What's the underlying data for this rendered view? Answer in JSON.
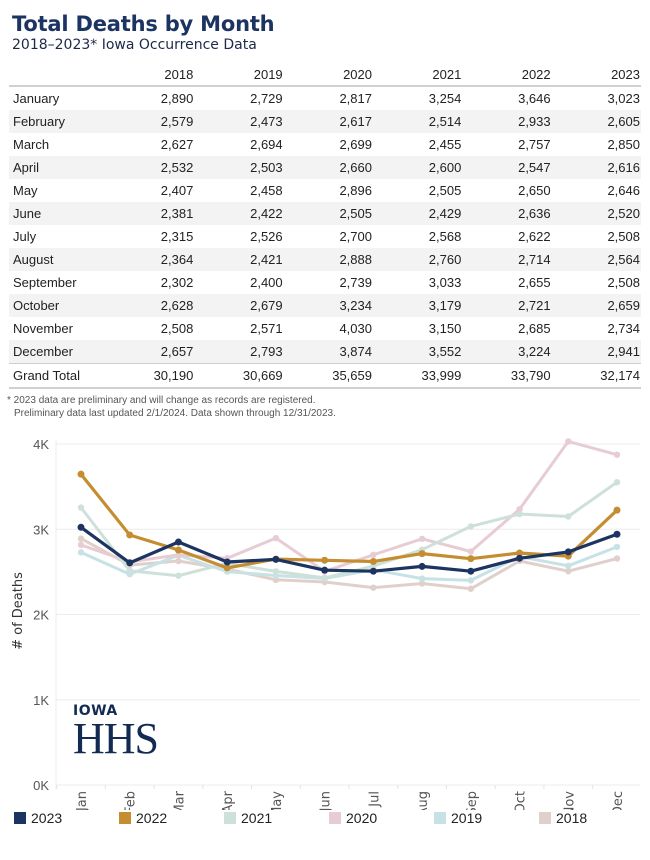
{
  "header": {
    "title": "Total Deaths by Month",
    "subtitle": "2018–2023* Iowa Occurrence Data"
  },
  "table": {
    "columns": [
      "",
      "2018",
      "2019",
      "2020",
      "2021",
      "2022",
      "2023"
    ],
    "rows": [
      {
        "month": "January",
        "values": [
          "2,890",
          "2,729",
          "2,817",
          "3,254",
          "3,646",
          "3,023"
        ]
      },
      {
        "month": "February",
        "values": [
          "2,579",
          "2,473",
          "2,617",
          "2,514",
          "2,933",
          "2,605"
        ]
      },
      {
        "month": "March",
        "values": [
          "2,627",
          "2,694",
          "2,699",
          "2,455",
          "2,757",
          "2,850"
        ]
      },
      {
        "month": "April",
        "values": [
          "2,532",
          "2,503",
          "2,660",
          "2,600",
          "2,547",
          "2,616"
        ]
      },
      {
        "month": "May",
        "values": [
          "2,407",
          "2,458",
          "2,896",
          "2,505",
          "2,650",
          "2,646"
        ]
      },
      {
        "month": "June",
        "values": [
          "2,381",
          "2,422",
          "2,505",
          "2,429",
          "2,636",
          "2,520"
        ]
      },
      {
        "month": "July",
        "values": [
          "2,315",
          "2,526",
          "2,700",
          "2,568",
          "2,622",
          "2,508"
        ]
      },
      {
        "month": "August",
        "values": [
          "2,364",
          "2,421",
          "2,888",
          "2,760",
          "2,714",
          "2,564"
        ]
      },
      {
        "month": "September",
        "values": [
          "2,302",
          "2,400",
          "2,739",
          "3,033",
          "2,655",
          "2,508"
        ]
      },
      {
        "month": "October",
        "values": [
          "2,628",
          "2,679",
          "3,234",
          "3,179",
          "2,721",
          "2,659"
        ]
      },
      {
        "month": "November",
        "values": [
          "2,508",
          "2,571",
          "4,030",
          "3,150",
          "2,685",
          "2,734"
        ]
      },
      {
        "month": "December",
        "values": [
          "2,657",
          "2,793",
          "3,874",
          "3,552",
          "3,224",
          "2,941"
        ]
      }
    ],
    "total": {
      "label": "Grand Total",
      "values": [
        "30,190",
        "30,669",
        "35,659",
        "33,999",
        "33,790",
        "32,174"
      ]
    }
  },
  "notes": [
    "* 2023 data are preliminary and will change as records are registered.",
    "Preliminary data last updated 2/1/2024. Data shown through 12/31/2023."
  ],
  "logo": {
    "line1": "IOWA",
    "line2": "HHS"
  },
  "chart_data": {
    "type": "line",
    "title": "",
    "xlabel": "",
    "ylabel": "# of Deaths",
    "categories": [
      "Jan",
      "Feb",
      "Mar",
      "Apr",
      "May",
      "Jun",
      "Jul",
      "Aug",
      "Sep",
      "Oct",
      "Nov",
      "Dec"
    ],
    "ylim": [
      0,
      4000
    ],
    "yticks": [
      0,
      1000,
      2000,
      3000,
      4000
    ],
    "ytick_labels": [
      "0K",
      "1K",
      "2K",
      "3K",
      "4K"
    ],
    "grid": true,
    "legend_position": "bottom",
    "series": [
      {
        "name": "2018",
        "color": "#e0d0cc",
        "values": [
          2890,
          2579,
          2627,
          2532,
          2407,
          2381,
          2315,
          2364,
          2302,
          2628,
          2508,
          2657
        ]
      },
      {
        "name": "2019",
        "color": "#c7e2e4",
        "values": [
          2729,
          2473,
          2694,
          2503,
          2458,
          2422,
          2526,
          2421,
          2400,
          2679,
          2571,
          2793
        ]
      },
      {
        "name": "2020",
        "color": "#e8ccd3",
        "values": [
          2817,
          2617,
          2699,
          2660,
          2896,
          2505,
          2700,
          2888,
          2739,
          3234,
          4030,
          3874
        ]
      },
      {
        "name": "2021",
        "color": "#cde0da",
        "values": [
          3254,
          2514,
          2455,
          2600,
          2505,
          2429,
          2568,
          2760,
          3033,
          3179,
          3150,
          3552
        ]
      },
      {
        "name": "2022",
        "color": "#c58d32",
        "values": [
          3646,
          2933,
          2757,
          2547,
          2650,
          2636,
          2622,
          2714,
          2655,
          2721,
          2685,
          3224
        ]
      },
      {
        "name": "2023",
        "color": "#1c3461",
        "values": [
          3023,
          2605,
          2850,
          2616,
          2646,
          2520,
          2508,
          2564,
          2508,
          2659,
          2734,
          2941
        ]
      }
    ],
    "legend_order": [
      "2023",
      "2022",
      "2021",
      "2020",
      "2019",
      "2018"
    ]
  }
}
